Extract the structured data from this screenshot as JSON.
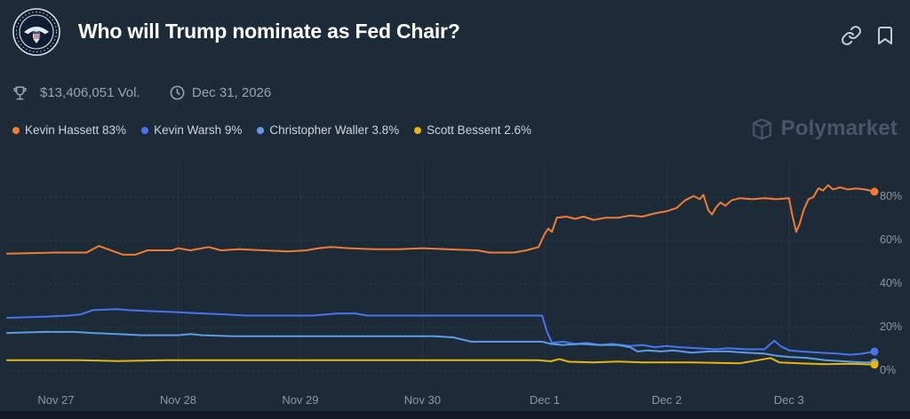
{
  "header": {
    "title": "Who will Trump nominate as Fed Chair?"
  },
  "stats": {
    "volume": "$13,406,051 Vol.",
    "end_date": "Dec 31, 2026"
  },
  "legend": [
    {
      "label": "Kevin Hassett 83%",
      "color": "#f47c32"
    },
    {
      "label": "Kevin Warsh 9%",
      "color": "#4a73f0"
    },
    {
      "label": "Christopher Waller 3.8%",
      "color": "#5d9ce6"
    },
    {
      "label": "Scott Bessent 2.6%",
      "color": "#e9b califor10"
    }
  ],
  "watermark": {
    "label": "Polymarket"
  },
  "chart_data": {
    "type": "line",
    "title": "",
    "xlabel": "",
    "ylabel": "",
    "ylim": [
      0,
      100
    ],
    "xlim": [
      -0.4,
      6.7
    ],
    "grid": true,
    "legend_position": "top-left",
    "x_ticks": [
      "Nov 27",
      "Nov 28",
      "Nov 29",
      "Nov 30",
      "Dec 1",
      "Dec 2",
      "Dec 3"
    ],
    "x_tick_values": [
      0,
      1,
      2,
      3,
      4,
      5,
      6
    ],
    "y_ticks": [
      "0%",
      "20%",
      "40%",
      "60%",
      "80%"
    ],
    "y_tick_values": [
      0,
      20,
      40,
      60,
      80
    ],
    "series": [
      {
        "name": "Kevin Hassett",
        "color": "#f47c32",
        "current": "83%",
        "points": [
          [
            -0.4,
            54
          ],
          [
            0,
            54.5
          ],
          [
            0.25,
            54.5
          ],
          [
            0.35,
            57.5
          ],
          [
            0.45,
            55.5
          ],
          [
            0.55,
            53.5
          ],
          [
            0.65,
            53.5
          ],
          [
            0.75,
            55.5
          ],
          [
            0.95,
            55.5
          ],
          [
            1.0,
            56.5
          ],
          [
            1.1,
            55.5
          ],
          [
            1.25,
            57
          ],
          [
            1.35,
            55.5
          ],
          [
            1.5,
            56
          ],
          [
            1.7,
            55.5
          ],
          [
            1.9,
            55
          ],
          [
            2.05,
            55.5
          ],
          [
            2.15,
            56.5
          ],
          [
            2.25,
            57
          ],
          [
            2.4,
            56.5
          ],
          [
            2.6,
            56
          ],
          [
            2.8,
            56
          ],
          [
            3.0,
            56.5
          ],
          [
            3.2,
            56
          ],
          [
            3.45,
            55.5
          ],
          [
            3.55,
            54.5
          ],
          [
            3.75,
            54.5
          ],
          [
            3.85,
            55.5
          ],
          [
            3.95,
            57
          ],
          [
            4.0,
            63
          ],
          [
            4.03,
            65.5
          ],
          [
            4.06,
            64
          ],
          [
            4.1,
            70.5
          ],
          [
            4.18,
            71
          ],
          [
            4.25,
            70
          ],
          [
            4.32,
            71
          ],
          [
            4.4,
            69.5
          ],
          [
            4.5,
            70.5
          ],
          [
            4.6,
            70.5
          ],
          [
            4.7,
            71.5
          ],
          [
            4.8,
            71
          ],
          [
            4.9,
            72.5
          ],
          [
            5.0,
            73.5
          ],
          [
            5.08,
            75
          ],
          [
            5.15,
            78.5
          ],
          [
            5.22,
            80.5
          ],
          [
            5.27,
            79
          ],
          [
            5.3,
            81
          ],
          [
            5.34,
            74
          ],
          [
            5.37,
            72
          ],
          [
            5.4,
            75
          ],
          [
            5.44,
            77.5
          ],
          [
            5.48,
            76
          ],
          [
            5.53,
            78.5
          ],
          [
            5.6,
            79.5
          ],
          [
            5.7,
            79
          ],
          [
            5.8,
            79.5
          ],
          [
            5.9,
            79
          ],
          [
            6.0,
            79.5
          ],
          [
            6.03,
            71
          ],
          [
            6.06,
            64
          ],
          [
            6.09,
            68
          ],
          [
            6.12,
            74
          ],
          [
            6.16,
            79
          ],
          [
            6.2,
            80
          ],
          [
            6.24,
            84
          ],
          [
            6.28,
            83
          ],
          [
            6.32,
            85.5
          ],
          [
            6.36,
            83.5
          ],
          [
            6.42,
            84.5
          ],
          [
            6.48,
            83.5
          ],
          [
            6.55,
            84
          ],
          [
            6.62,
            83.5
          ],
          [
            6.7,
            82.5
          ]
        ]
      },
      {
        "name": "Kevin Warsh",
        "color": "#4a73f0",
        "current": "9%",
        "points": [
          [
            -0.4,
            24.5
          ],
          [
            -0.1,
            25
          ],
          [
            0.1,
            25.5
          ],
          [
            0.2,
            26
          ],
          [
            0.3,
            28
          ],
          [
            0.5,
            28.5
          ],
          [
            0.6,
            28
          ],
          [
            0.8,
            27.5
          ],
          [
            1.0,
            27
          ],
          [
            1.2,
            26.5
          ],
          [
            1.4,
            26
          ],
          [
            1.55,
            25.5
          ],
          [
            1.8,
            25.5
          ],
          [
            2.1,
            25.5
          ],
          [
            2.3,
            26.5
          ],
          [
            2.45,
            26.5
          ],
          [
            2.55,
            25.5
          ],
          [
            2.9,
            25.5
          ],
          [
            3.3,
            25.5
          ],
          [
            3.7,
            25.5
          ],
          [
            3.98,
            25.5
          ],
          [
            4.02,
            18
          ],
          [
            4.06,
            13
          ],
          [
            4.15,
            13.5
          ],
          [
            4.25,
            12.5
          ],
          [
            4.35,
            13
          ],
          [
            4.45,
            12
          ],
          [
            4.55,
            12.5
          ],
          [
            4.7,
            11.5
          ],
          [
            4.8,
            12
          ],
          [
            4.9,
            11
          ],
          [
            5.0,
            11.5
          ],
          [
            5.1,
            11
          ],
          [
            5.25,
            10.5
          ],
          [
            5.4,
            10
          ],
          [
            5.5,
            10.5
          ],
          [
            5.65,
            10
          ],
          [
            5.8,
            10
          ],
          [
            5.88,
            14
          ],
          [
            5.93,
            11.5
          ],
          [
            6.0,
            9.5
          ],
          [
            6.1,
            9
          ],
          [
            6.25,
            8.5
          ],
          [
            6.4,
            8
          ],
          [
            6.5,
            7.5
          ],
          [
            6.6,
            8
          ],
          [
            6.7,
            9
          ]
        ]
      },
      {
        "name": "Christopher Waller",
        "color": "#5d9ce6",
        "current": "3.8%",
        "points": [
          [
            -0.4,
            17.5
          ],
          [
            -0.1,
            18
          ],
          [
            0.15,
            18
          ],
          [
            0.3,
            17.5
          ],
          [
            0.5,
            17
          ],
          [
            0.7,
            16.5
          ],
          [
            1.0,
            16.5
          ],
          [
            1.1,
            17
          ],
          [
            1.2,
            16.5
          ],
          [
            1.45,
            16
          ],
          [
            2.0,
            16
          ],
          [
            2.6,
            16
          ],
          [
            3.1,
            16
          ],
          [
            3.25,
            15.5
          ],
          [
            3.4,
            13.5
          ],
          [
            3.7,
            13.5
          ],
          [
            3.98,
            13.5
          ],
          [
            4.05,
            12.5
          ],
          [
            4.15,
            12
          ],
          [
            4.3,
            12.5
          ],
          [
            4.45,
            12
          ],
          [
            4.6,
            12
          ],
          [
            4.7,
            11
          ],
          [
            4.76,
            9
          ],
          [
            4.85,
            9.5
          ],
          [
            4.95,
            9
          ],
          [
            5.05,
            9.5
          ],
          [
            5.2,
            8.5
          ],
          [
            5.35,
            9
          ],
          [
            5.5,
            9
          ],
          [
            5.65,
            8.5
          ],
          [
            5.8,
            8
          ],
          [
            5.9,
            7
          ],
          [
            6.0,
            6.5
          ],
          [
            6.15,
            6
          ],
          [
            6.3,
            5
          ],
          [
            6.45,
            4.5
          ],
          [
            6.6,
            4
          ],
          [
            6.7,
            4
          ]
        ]
      },
      {
        "name": "Scott Bessent",
        "color": "#e9b410",
        "current": "2.6%",
        "points": [
          [
            -0.4,
            5
          ],
          [
            0.2,
            5
          ],
          [
            0.5,
            4.6
          ],
          [
            0.9,
            5
          ],
          [
            1.5,
            5
          ],
          [
            2.2,
            5
          ],
          [
            3.0,
            5
          ],
          [
            3.6,
            5
          ],
          [
            3.95,
            5
          ],
          [
            4.05,
            4.5
          ],
          [
            4.12,
            5.5
          ],
          [
            4.2,
            4.3
          ],
          [
            4.4,
            4
          ],
          [
            4.6,
            4.4
          ],
          [
            4.8,
            4
          ],
          [
            5.2,
            4
          ],
          [
            5.6,
            3.6
          ],
          [
            5.85,
            6
          ],
          [
            5.92,
            4
          ],
          [
            6.1,
            3.5
          ],
          [
            6.3,
            3.2
          ],
          [
            6.5,
            3.4
          ],
          [
            6.7,
            3
          ]
        ]
      }
    ]
  }
}
